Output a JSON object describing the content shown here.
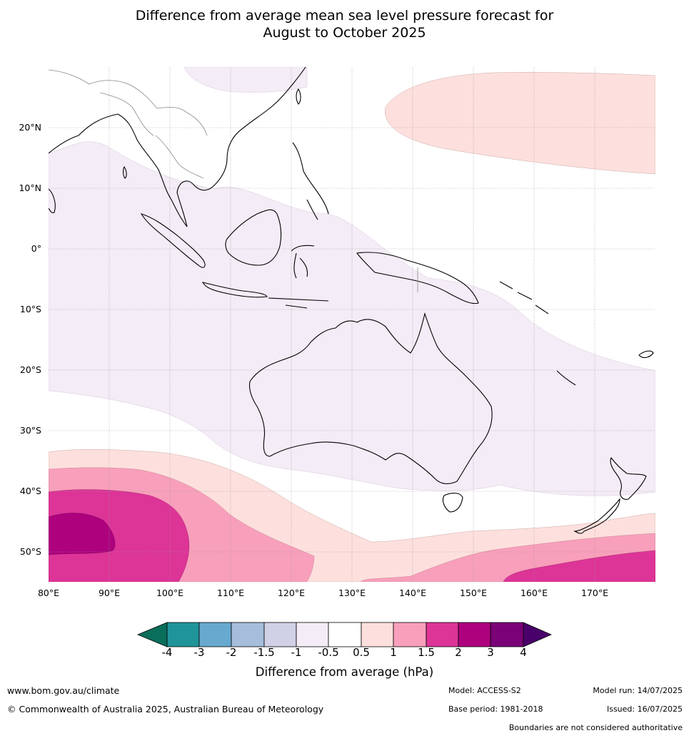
{
  "title": {
    "line1": "Difference from average mean sea level pressure forecast for",
    "line2": "August to October 2025"
  },
  "map": {
    "lon_range": [
      80,
      180
    ],
    "lat_range": [
      -55,
      30
    ],
    "lat_labels": [
      "20°N",
      "10°N",
      "0°",
      "10°S",
      "20°S",
      "30°S",
      "40°S",
      "50°S"
    ],
    "lon_labels": [
      "80°E",
      "90°E",
      "100°E",
      "110°E",
      "120°E",
      "130°E",
      "140°E",
      "150°E",
      "160°E",
      "170°E"
    ],
    "colors": {
      "land_outline": "#000000",
      "border": "#888888",
      "gridline": "#999999"
    }
  },
  "colorbar": {
    "ticks": [
      "-4",
      "-3",
      "-2",
      "-1.5",
      "-1",
      "-0.5",
      "0.5",
      "1",
      "1.5",
      "2",
      "3",
      "4"
    ],
    "colors": [
      "#0a6e5a",
      "#1f9499",
      "#67a9cf",
      "#a6bddb",
      "#d0d1e6",
      "#f4ecf6",
      "#ffffff",
      "#fde0dd",
      "#f89fbb",
      "#dd3497",
      "#ae017e",
      "#7a0177",
      "#49006a"
    ],
    "label": "Difference from average (hPa)"
  },
  "footer": {
    "website": "www.bom.gov.au/climate",
    "copyright": "© Commonwealth of Australia 2025, Australian Bureau of Meteorology",
    "model": "Model: ACCESS-S2",
    "base_period": "Base period: 1981-2018",
    "model_run": "Model run: 14/07/2025",
    "issued": "Issued: 16/07/2025",
    "boundaries_note": "Boundaries are not considered authoritative"
  }
}
